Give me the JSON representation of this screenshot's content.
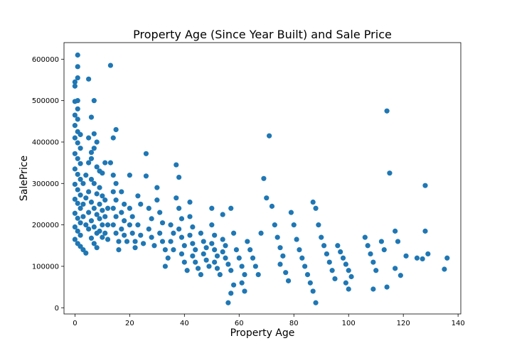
{
  "chart_data": {
    "type": "scatter",
    "title": "Property Age (Since Year Built) and Sale Price",
    "xlabel": "Property Age",
    "ylabel": "SalePrice",
    "xlim": [
      -4,
      141
    ],
    "ylim": [
      -15000,
      640000
    ],
    "xticks": [
      0,
      20,
      40,
      60,
      80,
      100,
      120,
      140
    ],
    "yticks": [
      0,
      100000,
      200000,
      300000,
      400000,
      500000,
      600000
    ],
    "grid": false,
    "legend": "none",
    "point_color": "#1f77b4",
    "points": [
      [
        1,
        610000
      ],
      [
        1,
        582000
      ],
      [
        1,
        555000
      ],
      [
        0,
        545000
      ],
      [
        0,
        535000
      ],
      [
        1,
        500000
      ],
      [
        0,
        498000
      ],
      [
        1,
        480000
      ],
      [
        0,
        465000
      ],
      [
        1,
        455000
      ],
      [
        0,
        440000
      ],
      [
        1,
        425000
      ],
      [
        2,
        418000
      ],
      [
        0,
        410000
      ],
      [
        1,
        398000
      ],
      [
        2,
        385000
      ],
      [
        0,
        372000
      ],
      [
        1,
        360000
      ],
      [
        2,
        348000
      ],
      [
        0,
        335000
      ],
      [
        1,
        322000
      ],
      [
        2,
        310000
      ],
      [
        0,
        298000
      ],
      [
        1,
        285000
      ],
      [
        2,
        272000
      ],
      [
        0,
        262000
      ],
      [
        1,
        252000
      ],
      [
        2,
        240000
      ],
      [
        0,
        228000
      ],
      [
        1,
        216000
      ],
      [
        2,
        205000
      ],
      [
        0,
        195000
      ],
      [
        1,
        185000
      ],
      [
        2,
        175000
      ],
      [
        0,
        165000
      ],
      [
        1,
        155000
      ],
      [
        2,
        148000
      ],
      [
        3,
        140000
      ],
      [
        4,
        132000
      ],
      [
        3,
        250000
      ],
      [
        4,
        265000
      ],
      [
        3,
        300000
      ],
      [
        4,
        320000
      ],
      [
        3,
        220000
      ],
      [
        4,
        200000
      ],
      [
        5,
        190000
      ],
      [
        5,
        230000
      ],
      [
        5,
        280000
      ],
      [
        6,
        310000
      ],
      [
        5,
        350000
      ],
      [
        6,
        375000
      ],
      [
        5,
        410000
      ],
      [
        6,
        460000
      ],
      [
        5,
        552000
      ],
      [
        7,
        500000
      ],
      [
        7,
        420000
      ],
      [
        8,
        400000
      ],
      [
        7,
        385000
      ],
      [
        6,
        360000
      ],
      [
        8,
        340000
      ],
      [
        7,
        300000
      ],
      [
        8,
        275000
      ],
      [
        6,
        255000
      ],
      [
        7,
        240000
      ],
      [
        8,
        225000
      ],
      [
        6,
        210000
      ],
      [
        7,
        195000
      ],
      [
        8,
        180000
      ],
      [
        6,
        168000
      ],
      [
        7,
        155000
      ],
      [
        8,
        145000
      ],
      [
        9,
        330000
      ],
      [
        10,
        325000
      ],
      [
        9,
        290000
      ],
      [
        10,
        270000
      ],
      [
        9,
        250000
      ],
      [
        10,
        235000
      ],
      [
        9,
        215000
      ],
      [
        10,
        200000
      ],
      [
        9,
        185000
      ],
      [
        10,
        170000
      ],
      [
        11,
        350000
      ],
      [
        11,
        260000
      ],
      [
        12,
        240000
      ],
      [
        11,
        220000
      ],
      [
        12,
        200000
      ],
      [
        11,
        180000
      ],
      [
        12,
        165000
      ],
      [
        13,
        585000
      ],
      [
        13,
        350000
      ],
      [
        14,
        410000
      ],
      [
        15,
        430000
      ],
      [
        14,
        320000
      ],
      [
        15,
        300000
      ],
      [
        14,
        280000
      ],
      [
        15,
        260000
      ],
      [
        14,
        240000
      ],
      [
        15,
        220000
      ],
      [
        14,
        200000
      ],
      [
        15,
        180000
      ],
      [
        16,
        160000
      ],
      [
        16,
        140000
      ],
      [
        17,
        280000
      ],
      [
        18,
        250000
      ],
      [
        17,
        230000
      ],
      [
        18,
        210000
      ],
      [
        17,
        190000
      ],
      [
        18,
        175000
      ],
      [
        19,
        160000
      ],
      [
        20,
        320000
      ],
      [
        20,
        240000
      ],
      [
        21,
        220000
      ],
      [
        20,
        200000
      ],
      [
        21,
        180000
      ],
      [
        22,
        160000
      ],
      [
        22,
        145000
      ],
      [
        23,
        270000
      ],
      [
        24,
        250000
      ],
      [
        23,
        200000
      ],
      [
        24,
        175000
      ],
      [
        25,
        155000
      ],
      [
        26,
        372000
      ],
      [
        26,
        318000
      ],
      [
        27,
        240000
      ],
      [
        28,
        215000
      ],
      [
        27,
        190000
      ],
      [
        28,
        170000
      ],
      [
        29,
        150000
      ],
      [
        30,
        260000
      ],
      [
        30,
        290000
      ],
      [
        31,
        230000
      ],
      [
        32,
        205000
      ],
      [
        31,
        180000
      ],
      [
        32,
        160000
      ],
      [
        33,
        140000
      ],
      [
        34,
        120000
      ],
      [
        33,
        100000
      ],
      [
        35,
        200000
      ],
      [
        36,
        180000
      ],
      [
        35,
        160000
      ],
      [
        36,
        140000
      ],
      [
        37,
        345000
      ],
      [
        38,
        315000
      ],
      [
        37,
        265000
      ],
      [
        38,
        240000
      ],
      [
        39,
        215000
      ],
      [
        38,
        190000
      ],
      [
        39,
        170000
      ],
      [
        40,
        150000
      ],
      [
        39,
        130000
      ],
      [
        40,
        110000
      ],
      [
        41,
        90000
      ],
      [
        42,
        255000
      ],
      [
        42,
        220000
      ],
      [
        43,
        195000
      ],
      [
        42,
        175000
      ],
      [
        43,
        155000
      ],
      [
        44,
        140000
      ],
      [
        43,
        125000
      ],
      [
        44,
        110000
      ],
      [
        45,
        95000
      ],
      [
        46,
        80000
      ],
      [
        46,
        180000
      ],
      [
        47,
        160000
      ],
      [
        48,
        145000
      ],
      [
        47,
        130000
      ],
      [
        48,
        115000
      ],
      [
        49,
        100000
      ],
      [
        50,
        240000
      ],
      [
        50,
        200000
      ],
      [
        51,
        175000
      ],
      [
        50,
        155000
      ],
      [
        51,
        140000
      ],
      [
        52,
        125000
      ],
      [
        51,
        110000
      ],
      [
        52,
        95000
      ],
      [
        53,
        80000
      ],
      [
        54,
        225000
      ],
      [
        54,
        165000
      ],
      [
        55,
        150000
      ],
      [
        54,
        135000
      ],
      [
        55,
        120000
      ],
      [
        56,
        105000
      ],
      [
        57,
        90000
      ],
      [
        56,
        12000
      ],
      [
        57,
        35000
      ],
      [
        58,
        55000
      ],
      [
        57,
        240000
      ],
      [
        58,
        180000
      ],
      [
        59,
        140000
      ],
      [
        60,
        120000
      ],
      [
        61,
        100000
      ],
      [
        62,
        80000
      ],
      [
        61,
        60000
      ],
      [
        62,
        40000
      ],
      [
        63,
        160000
      ],
      [
        64,
        140000
      ],
      [
        65,
        120000
      ],
      [
        66,
        100000
      ],
      [
        67,
        80000
      ],
      [
        68,
        180000
      ],
      [
        69,
        312000
      ],
      [
        70,
        265000
      ],
      [
        71,
        415000
      ],
      [
        72,
        245000
      ],
      [
        73,
        200000
      ],
      [
        74,
        170000
      ],
      [
        75,
        145000
      ],
      [
        76,
        125000
      ],
      [
        75,
        105000
      ],
      [
        77,
        85000
      ],
      [
        78,
        65000
      ],
      [
        79,
        230000
      ],
      [
        80,
        200000
      ],
      [
        81,
        165000
      ],
      [
        82,
        140000
      ],
      [
        83,
        120000
      ],
      [
        84,
        100000
      ],
      [
        85,
        80000
      ],
      [
        86,
        60000
      ],
      [
        87,
        40000
      ],
      [
        88,
        12000
      ],
      [
        87,
        255000
      ],
      [
        88,
        240000
      ],
      [
        89,
        200000
      ],
      [
        90,
        170000
      ],
      [
        91,
        150000
      ],
      [
        92,
        130000
      ],
      [
        93,
        110000
      ],
      [
        94,
        90000
      ],
      [
        95,
        70000
      ],
      [
        96,
        150000
      ],
      [
        97,
        135000
      ],
      [
        98,
        120000
      ],
      [
        99,
        105000
      ],
      [
        100,
        90000
      ],
      [
        101,
        75000
      ],
      [
        99,
        60000
      ],
      [
        100,
        45000
      ],
      [
        106,
        170000
      ],
      [
        107,
        150000
      ],
      [
        108,
        130000
      ],
      [
        109,
        110000
      ],
      [
        110,
        90000
      ],
      [
        109,
        45000
      ],
      [
        112,
        160000
      ],
      [
        113,
        140000
      ],
      [
        114,
        475000
      ],
      [
        115,
        325000
      ],
      [
        114,
        50000
      ],
      [
        117,
        185000
      ],
      [
        118,
        160000
      ],
      [
        117,
        95000
      ],
      [
        119,
        78000
      ],
      [
        121,
        125000
      ],
      [
        125,
        120000
      ],
      [
        127,
        118000
      ],
      [
        128,
        295000
      ],
      [
        128,
        185000
      ],
      [
        129,
        130000
      ],
      [
        135,
        93000
      ],
      [
        136,
        120000
      ]
    ]
  }
}
